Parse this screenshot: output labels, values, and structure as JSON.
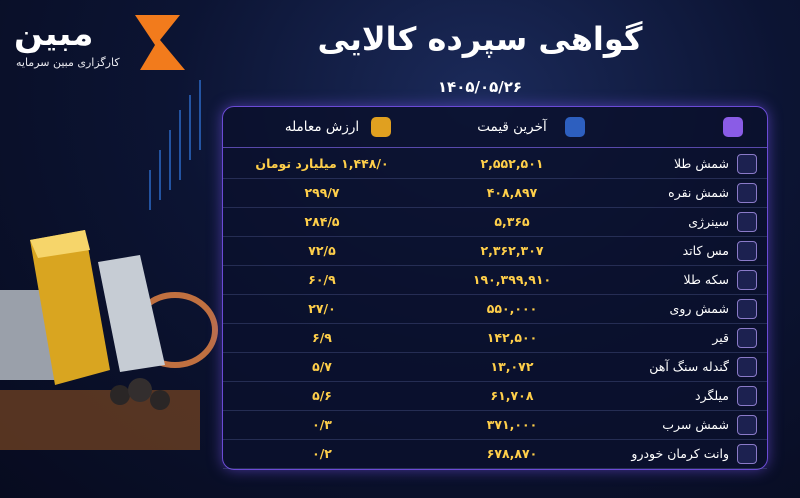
{
  "header": {
    "brand": "مبین",
    "brand_sub": "کارگزاری مبین سرمایه",
    "title": "گواهی سپرده کالایی",
    "date": "۱۴۰۵/۰۵/۲۶"
  },
  "table": {
    "headers": [
      "آخرین قیمت",
      "ارزش معامله"
    ],
    "rows": [
      [
        "شمش طلا",
        "۲,۵۵۲,۵۰۱",
        "۱,۴۴۸/۰ میلیارد تومان"
      ],
      [
        "شمش نقره",
        "۴۰۸,۸۹۷",
        "۲۹۹/۷"
      ],
      [
        "سینرژی",
        "۵,۳۶۵",
        "۲۸۴/۵"
      ],
      [
        "مس کاتد",
        "۲,۳۶۲,۳۰۷",
        "۷۲/۵"
      ],
      [
        "سکه طلا",
        "۱۹۰,۳۹۹,۹۱۰",
        "۶۰/۹"
      ],
      [
        "شمش روی",
        "۵۵۰,۰۰۰",
        "۲۷/۰"
      ],
      [
        "قیر",
        "۱۴۲,۵۰۰",
        "۶/۹"
      ],
      [
        "گندله سنگ آهن",
        "۱۳,۰۷۲",
        "۵/۷"
      ],
      [
        "میلگرد",
        "۶۱,۷۰۸",
        "۵/۶"
      ],
      [
        "شمش سرب",
        "۳۷۱,۰۰۰",
        "۰/۳"
      ],
      [
        "وانت کرمان خودرو",
        "۶۷۸,۸۷۰",
        "۰/۲"
      ]
    ]
  }
}
